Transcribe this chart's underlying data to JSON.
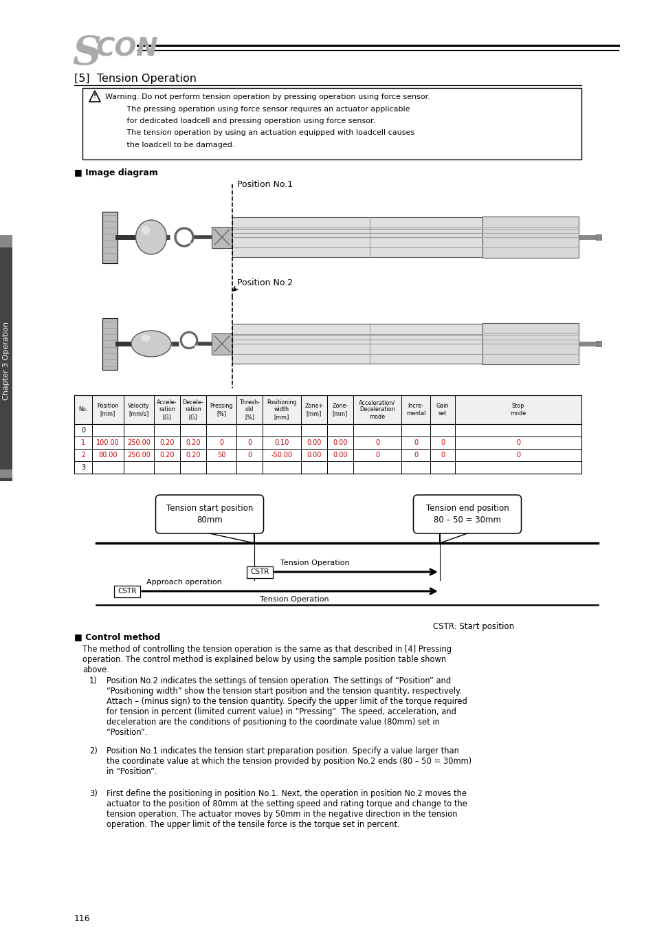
{
  "bg_color": "#ffffff",
  "section_title": "[5]  Tension Operation",
  "image_diagram_label": "■ Image diagram",
  "pos1_label": "Position No.1",
  "pos2_label": "Position No.2",
  "table_headers": [
    "No.",
    "Position\n[mm]",
    "Velocity\n[mm/s]",
    "Accele-\nration\n[G]",
    "Decele-\nration\n[G]",
    "Pressing\n[%]",
    "Thresh-\nold\n[%]",
    "Positioning\nwidth\n[mm]",
    "Zone+\n[mm]",
    "Zone-\n[mm]",
    "Acceleration/\nDeceleration\nmode",
    "Incre-\nmental",
    "Gain\nset",
    "Stop\nmode"
  ],
  "table_rows": [
    [
      "0",
      "",
      "",
      "",
      "",
      "",
      "",
      "",
      "",
      "",
      "",
      "",
      "",
      ""
    ],
    [
      "1",
      "100.00",
      "250.00",
      "0.20",
      "0.20",
      "0",
      "0",
      "0.10",
      "0.00",
      "0.00",
      "0",
      "0",
      "0",
      "0"
    ],
    [
      "2",
      "80.00",
      "250.00",
      "0.20",
      "0.20",
      "50",
      "0",
      "-50.00",
      "0.00",
      "0.00",
      "0",
      "0",
      "0",
      "0"
    ],
    [
      "3",
      "",
      "",
      "",
      "",
      "",
      "",
      "",
      "",
      "",
      "",
      "",
      "",
      ""
    ]
  ],
  "red_rows": [
    1,
    2
  ],
  "tension_start_label": "Tension start position\n80mm",
  "tension_end_label": "Tension end position\n80 – 50 = 30mm",
  "approach_label": "Approach operation",
  "tension_op_label1": "Tension Operation",
  "tension_op_label2": "Tension Operation",
  "cstr_label1": "CSTR",
  "cstr_label2": "CSTR",
  "cstr_note": "CSTR: Start position",
  "control_title": "■ Control method",
  "control_text1": "The method of controlling the tension operation is the same as that described in [4] Pressing\noperation. The control method is explained below by using the sample position table shown\nabove.",
  "bullet_items": [
    "Position No.2 indicates the settings of tension operation. The settings of “Position” and\n“Positioning width” show the tension start position and the tension quantity, respectively.\nAttach – (minus sign) to the tension quantity. Specify the upper limit of the torque required\nfor tension in percent (limited current value) in “Pressing”. The speed, acceleration, and\ndeceleration are the conditions of positioning to the coordinate value (80mm) set in\n“Position”.",
    "Position No.1 indicates the tension start preparation position. Specify a value larger than\nthe coordinate value at which the tension provided by position No.2 ends (80 – 50 = 30mm)\nin “Position”.",
    "First define the positioning in position No.1. Next, the operation in position No.2 moves the\nactuator to the position of 80mm at the setting speed and rating torque and change to the\ntension operation. The actuator moves by 50mm in the negative direction in the tension\noperation. The upper limit of the tensile force is the torque set in percent."
  ],
  "page_number": "116",
  "chapter_label": "Chapter 3 Operation",
  "warn_lines": [
    "Warning: Do not perform tension operation by pressing operation using force sensor.",
    "         The pressing operation using force sensor requires an actuator applicable",
    "         for dedicated loadcell and pressing operation using force sensor.",
    "         The tension operation by using an actuation equipped with loadcell causes",
    "         the loadcell to be damaged."
  ]
}
